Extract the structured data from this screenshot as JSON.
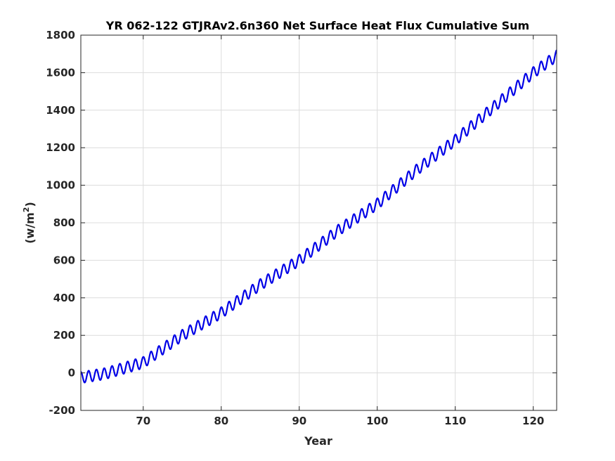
{
  "chart_data": {
    "type": "line",
    "title": "YR 062-122 GTJRAv2.6n360 Net Surface Heat Flux  Cumulative Sum",
    "xlabel": "Year",
    "ylabel_base": "(w/m",
    "ylabel_sup": "2",
    "ylabel_close": ")",
    "xlim": [
      62,
      123
    ],
    "ylim": [
      -200,
      1800
    ],
    "xticks": [
      70,
      80,
      90,
      100,
      110,
      120
    ],
    "yticks": [
      -200,
      0,
      200,
      400,
      600,
      800,
      1000,
      1200,
      1400,
      1600,
      1800
    ],
    "grid": true,
    "seasonal_cycle_amplitude": 30,
    "series": [
      {
        "color": "#0000e6",
        "trend_x": [
          62,
          65,
          70,
          75,
          80,
          85,
          90,
          95,
          100,
          105,
          110,
          115,
          120,
          123
        ],
        "trend_y": [
          -25,
          -5,
          55,
          200,
          320,
          470,
          600,
          760,
          900,
          1080,
          1240,
          1420,
          1600,
          1690
        ]
      }
    ]
  }
}
